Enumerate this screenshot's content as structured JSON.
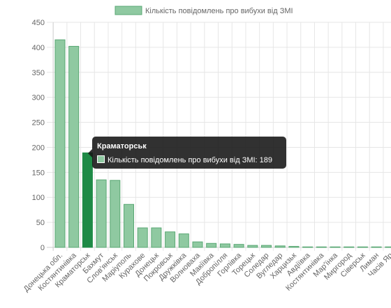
{
  "chart_data": {
    "type": "bar",
    "legend": {
      "label": "Кількість повідомлень про вибухи від ЗМІ",
      "position": "top"
    },
    "categories": [
      "Донецька обл.",
      "Костянтинівка",
      "Краматорськ",
      "Бахмут",
      "Слов'янськ",
      "Маріуполь",
      "Курахове",
      "Донецьк",
      "Покровськ",
      "Дружківка",
      "Волноваха",
      "Макіївка",
      "Добропілля",
      "Горлівка",
      "Торецьк",
      "Соледар",
      "Вугледар",
      "Харцизьк",
      "Авдіївка",
      "Костянтинівка",
      "Мар'їнка",
      "Миргород",
      "Сіверськ",
      "Лиман",
      "Часів Яр"
    ],
    "values": [
      415,
      402,
      189,
      135,
      134,
      86,
      39,
      39,
      31,
      27,
      11,
      8,
      7,
      6,
      4,
      4,
      3,
      2,
      1,
      1,
      1,
      1,
      1,
      1,
      1
    ],
    "ylim": [
      0,
      450
    ],
    "yticks": [
      0,
      50,
      100,
      150,
      200,
      250,
      300,
      350,
      400,
      450
    ],
    "grid": true,
    "colors": {
      "fill": "#8fc9a1",
      "border": "#5aa874",
      "highlight_fill": "#1e8a46",
      "grid": "#e6e6e6",
      "axis": "#cccccc"
    },
    "tooltip": {
      "index": 2,
      "title": "Краматорськ",
      "body": "Кількість повідомлень про вибухи від ЗМІ: 189"
    }
  }
}
